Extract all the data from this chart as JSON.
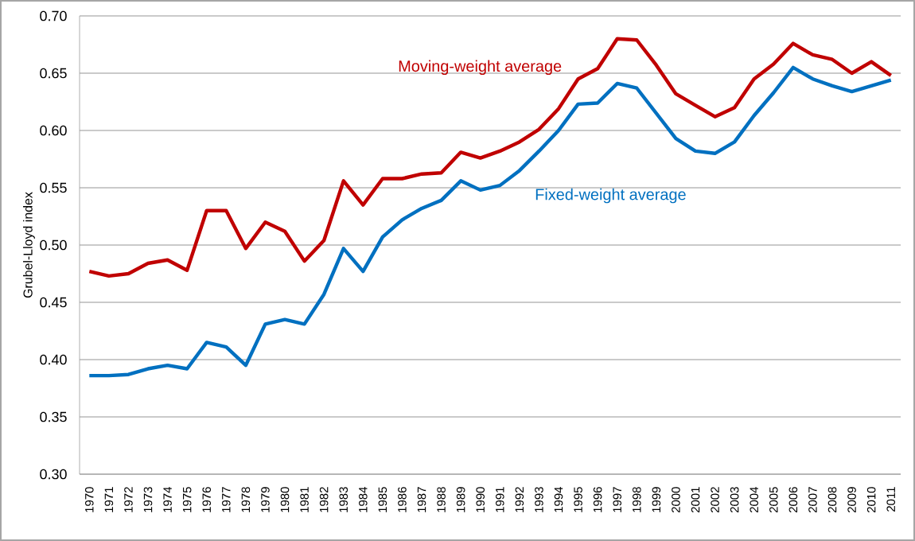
{
  "chart_data": {
    "type": "line",
    "ylabel": "Grubel-Lloyd index",
    "categories": [
      "1970",
      "1971",
      "1972",
      "1973",
      "1974",
      "1975",
      "1976",
      "1977",
      "1978",
      "1979",
      "1980",
      "1981",
      "1982",
      "1983",
      "1984",
      "1985",
      "1986",
      "1987",
      "1988",
      "1989",
      "1990",
      "1991",
      "1992",
      "1993",
      "1994",
      "1995",
      "1996",
      "1997",
      "1998",
      "1999",
      "2000",
      "2001",
      "2002",
      "2003",
      "2004",
      "2005",
      "2006",
      "2007",
      "2008",
      "2009",
      "2010",
      "2011"
    ],
    "series": [
      {
        "name": "Moving-weight average",
        "color": "#c00000",
        "values": [
          0.477,
          0.473,
          0.475,
          0.484,
          0.487,
          0.478,
          0.53,
          0.53,
          0.497,
          0.52,
          0.512,
          0.486,
          0.504,
          0.556,
          0.535,
          0.558,
          0.558,
          0.562,
          0.563,
          0.581,
          0.576,
          0.582,
          0.59,
          0.601,
          0.619,
          0.645,
          0.654,
          0.68,
          0.679,
          0.657,
          0.632,
          0.622,
          0.612,
          0.62,
          0.645,
          0.658,
          0.676,
          0.666,
          0.662,
          0.65,
          0.66,
          0.648
        ]
      },
      {
        "name": "Fixed-weight average",
        "color": "#0070c0",
        "values": [
          0.386,
          0.386,
          0.387,
          0.392,
          0.395,
          0.392,
          0.415,
          0.411,
          0.395,
          0.431,
          0.435,
          0.431,
          0.457,
          0.497,
          0.477,
          0.507,
          0.522,
          0.532,
          0.539,
          0.556,
          0.548,
          0.552,
          0.565,
          0.582,
          0.6,
          0.623,
          0.624,
          0.641,
          0.637,
          0.615,
          0.593,
          0.582,
          0.58,
          0.59,
          0.613,
          0.633,
          0.655,
          0.645,
          0.639,
          0.634,
          0.639,
          0.644
        ]
      }
    ],
    "ylim": [
      0.3,
      0.7
    ],
    "yticks": [
      {
        "value": 0.3,
        "label": "0.30"
      },
      {
        "value": 0.35,
        "label": "0.35"
      },
      {
        "value": 0.4,
        "label": "0.40"
      },
      {
        "value": 0.45,
        "label": "0.45"
      },
      {
        "value": 0.5,
        "label": "0.50"
      },
      {
        "value": 0.55,
        "label": "0.55"
      },
      {
        "value": 0.6,
        "label": "0.60"
      },
      {
        "value": 0.65,
        "label": "0.65"
      },
      {
        "value": 0.7,
        "label": "0.70"
      }
    ],
    "grid": "y",
    "legend": false,
    "marker": "none",
    "line_style": "solid"
  }
}
